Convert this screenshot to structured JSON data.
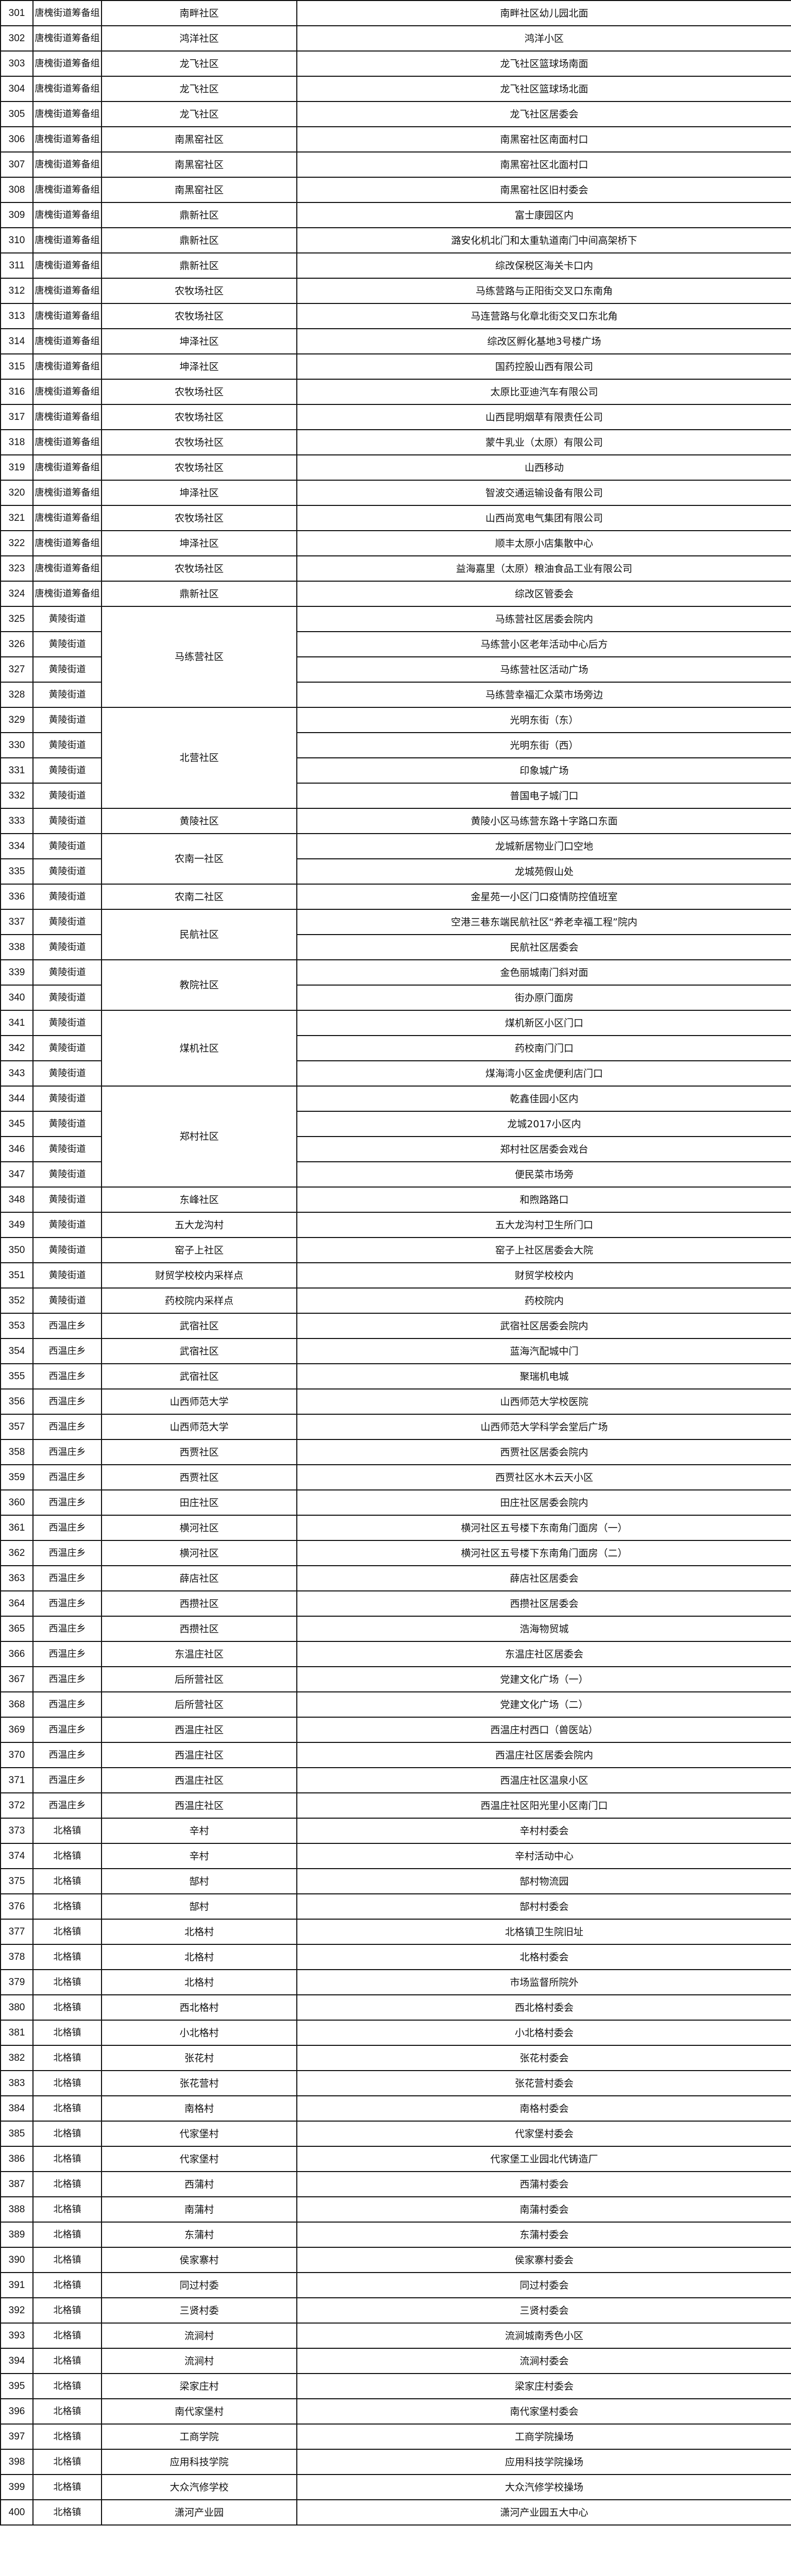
{
  "table": {
    "rows": [
      [
        "301",
        "唐槐街道筹备组",
        "南畔社区",
        "南畔社区幼儿园北面",
        1
      ],
      [
        "302",
        "唐槐街道筹备组",
        "鸿洋社区",
        "鸿洋小区",
        1
      ],
      [
        "303",
        "唐槐街道筹备组",
        "龙飞社区",
        "龙飞社区篮球场南面",
        1
      ],
      [
        "304",
        "唐槐街道筹备组",
        "龙飞社区",
        "龙飞社区篮球场北面",
        1
      ],
      [
        "305",
        "唐槐街道筹备组",
        "龙飞社区",
        "龙飞社区居委会",
        1
      ],
      [
        "306",
        "唐槐街道筹备组",
        "南黑窑社区",
        "南黑窑社区南面村口",
        1
      ],
      [
        "307",
        "唐槐街道筹备组",
        "南黑窑社区",
        "南黑窑社区北面村口",
        1
      ],
      [
        "308",
        "唐槐街道筹备组",
        "南黑窑社区",
        "南黑窑社区旧村委会",
        1
      ],
      [
        "309",
        "唐槐街道筹备组",
        "鼎新社区",
        "富士康园区内",
        1
      ],
      [
        "310",
        "唐槐街道筹备组",
        "鼎新社区",
        "潞安化机北门和太重轨道南门中间高架桥下",
        1
      ],
      [
        "311",
        "唐槐街道筹备组",
        "鼎新社区",
        "综改保税区海关卡口内",
        1
      ],
      [
        "312",
        "唐槐街道筹备组",
        "农牧场社区",
        "马练营路与正阳街交叉口东南角",
        1
      ],
      [
        "313",
        "唐槐街道筹备组",
        "农牧场社区",
        "马连营路与化章北街交叉口东北角",
        1
      ],
      [
        "314",
        "唐槐街道筹备组",
        "坤泽社区",
        "综改区孵化基地3号楼广场",
        1
      ],
      [
        "315",
        "唐槐街道筹备组",
        "坤泽社区",
        "国药控股山西有限公司",
        1
      ],
      [
        "316",
        "唐槐街道筹备组",
        "农牧场社区",
        "太原比亚迪汽车有限公司",
        1
      ],
      [
        "317",
        "唐槐街道筹备组",
        "农牧场社区",
        "山西昆明烟草有限责任公司",
        1
      ],
      [
        "318",
        "唐槐街道筹备组",
        "农牧场社区",
        "蒙牛乳业（太原）有限公司",
        1
      ],
      [
        "319",
        "唐槐街道筹备组",
        "农牧场社区",
        "山西移动",
        1
      ],
      [
        "320",
        "唐槐街道筹备组",
        "坤泽社区",
        "智波交通运输设备有限公司",
        1
      ],
      [
        "321",
        "唐槐街道筹备组",
        "农牧场社区",
        "山西尚宽电气集团有限公司",
        1
      ],
      [
        "322",
        "唐槐街道筹备组",
        "坤泽社区",
        "顺丰太原小店集散中心",
        1
      ],
      [
        "323",
        "唐槐街道筹备组",
        "农牧场社区",
        "益海嘉里（太原）粮油食品工业有限公司",
        1
      ],
      [
        "324",
        "唐槐街道筹备组",
        "鼎新社区",
        "综改区管委会",
        1
      ],
      [
        "325",
        "黄陵街道",
        "马练营社区",
        "马练营社区居委会院内",
        4
      ],
      [
        "326",
        "黄陵街道",
        null,
        "马练营小区老年活动中心后方",
        0
      ],
      [
        "327",
        "黄陵街道",
        null,
        "马练营社区活动广场",
        0
      ],
      [
        "328",
        "黄陵街道",
        null,
        "马练营幸福汇众菜市场旁边",
        0
      ],
      [
        "329",
        "黄陵街道",
        "北营社区",
        "光明东街（东）",
        4
      ],
      [
        "330",
        "黄陵街道",
        null,
        "光明东街（西）",
        0
      ],
      [
        "331",
        "黄陵街道",
        null,
        "印象城广场",
        0
      ],
      [
        "332",
        "黄陵街道",
        null,
        "普国电子城门口",
        0
      ],
      [
        "333",
        "黄陵街道",
        "黄陵社区",
        "黄陵小区马练营东路十字路口东面",
        1
      ],
      [
        "334",
        "黄陵街道",
        "农南一社区",
        "龙城新居物业门口空地",
        2
      ],
      [
        "335",
        "黄陵街道",
        null,
        "龙城苑假山处",
        0
      ],
      [
        "336",
        "黄陵街道",
        "农南二社区",
        "金星苑一小区门口疫情防控值班室",
        1
      ],
      [
        "337",
        "黄陵街道",
        "民航社区",
        "空港三巷东端民航社区“养老幸福工程”院内",
        2
      ],
      [
        "338",
        "黄陵街道",
        null,
        "民航社区居委会",
        0
      ],
      [
        "339",
        "黄陵街道",
        "教院社区",
        "金色丽城南门斜对面",
        2
      ],
      [
        "340",
        "黄陵街道",
        null,
        "街办原门面房",
        0
      ],
      [
        "341",
        "黄陵街道",
        "煤机社区",
        "煤机新区小区门口",
        3
      ],
      [
        "342",
        "黄陵街道",
        null,
        "药校南门门口",
        0
      ],
      [
        "343",
        "黄陵街道",
        null,
        "煤海湾小区金虎便利店门口",
        0
      ],
      [
        "344",
        "黄陵街道",
        "郑村社区",
        "乾鑫佳园小区内",
        4
      ],
      [
        "345",
        "黄陵街道",
        null,
        "龙城2017小区内",
        0
      ],
      [
        "346",
        "黄陵街道",
        null,
        "郑村社区居委会戏台",
        0
      ],
      [
        "347",
        "黄陵街道",
        null,
        "便民菜市场旁",
        0
      ],
      [
        "348",
        "黄陵街道",
        "东峰社区",
        "和煦路路口",
        1
      ],
      [
        "349",
        "黄陵街道",
        "五大龙沟村",
        "五大龙沟村卫生所门口",
        1
      ],
      [
        "350",
        "黄陵街道",
        "窑子上社区",
        "窑子上社区居委会大院",
        1
      ],
      [
        "351",
        "黄陵街道",
        "财贸学校校内采样点",
        "财贸学校校内",
        1
      ],
      [
        "352",
        "黄陵街道",
        "药校院内采样点",
        "药校院内",
        1
      ],
      [
        "353",
        "西温庄乡",
        "武宿社区",
        "武宿社区居委会院内",
        1
      ],
      [
        "354",
        "西温庄乡",
        "武宿社区",
        "蓝海汽配城中门",
        1
      ],
      [
        "355",
        "西温庄乡",
        "武宿社区",
        "聚瑞机电城",
        1
      ],
      [
        "356",
        "西温庄乡",
        "山西师范大学",
        "山西师范大学校医院",
        1
      ],
      [
        "357",
        "西温庄乡",
        "山西师范大学",
        "山西师范大学科学会堂后广场",
        1
      ],
      [
        "358",
        "西温庄乡",
        "西贾社区",
        "西贾社区居委会院内",
        1
      ],
      [
        "359",
        "西温庄乡",
        "西贾社区",
        "西贾社区水木云天小区",
        1
      ],
      [
        "360",
        "西温庄乡",
        "田庄社区",
        "田庄社区居委会院内",
        1
      ],
      [
        "361",
        "西温庄乡",
        "横河社区",
        "横河社区五号楼下东南角门面房（一）",
        1
      ],
      [
        "362",
        "西温庄乡",
        "横河社区",
        "横河社区五号楼下东南角门面房（二）",
        1
      ],
      [
        "363",
        "西温庄乡",
        "薛店社区",
        "薛店社区居委会",
        1
      ],
      [
        "364",
        "西温庄乡",
        "西攒社区",
        "西攒社区居委会",
        1
      ],
      [
        "365",
        "西温庄乡",
        "西攒社区",
        "浩海物贸城",
        1
      ],
      [
        "366",
        "西温庄乡",
        "东温庄社区",
        "东温庄社区居委会",
        1
      ],
      [
        "367",
        "西温庄乡",
        "后所营社区",
        "党建文化广场（一）",
        1
      ],
      [
        "368",
        "西温庄乡",
        "后所营社区",
        "党建文化广场（二）",
        1
      ],
      [
        "369",
        "西温庄乡",
        "西温庄社区",
        "西温庄村西口（兽医站）",
        1
      ],
      [
        "370",
        "西温庄乡",
        "西温庄社区",
        "西温庄社区居委会院内",
        1
      ],
      [
        "371",
        "西温庄乡",
        "西温庄社区",
        "西温庄社区温泉小区",
        1
      ],
      [
        "372",
        "西温庄乡",
        "西温庄社区",
        "西温庄社区阳光里小区南门口",
        1
      ],
      [
        "373",
        "北格镇",
        "辛村",
        "辛村村委会",
        1
      ],
      [
        "374",
        "北格镇",
        "辛村",
        "辛村活动中心",
        1
      ],
      [
        "375",
        "北格镇",
        "郜村",
        "郜村物流园",
        1
      ],
      [
        "376",
        "北格镇",
        "郜村",
        "郜村村委会",
        1
      ],
      [
        "377",
        "北格镇",
        "北格村",
        "北格镇卫生院旧址",
        1
      ],
      [
        "378",
        "北格镇",
        "北格村",
        "北格村委会",
        1
      ],
      [
        "379",
        "北格镇",
        "北格村",
        "市场监督所院外",
        1
      ],
      [
        "380",
        "北格镇",
        "西北格村",
        "西北格村委会",
        1
      ],
      [
        "381",
        "北格镇",
        "小北格村",
        "小北格村委会",
        1
      ],
      [
        "382",
        "北格镇",
        "张花村",
        "张花村委会",
        1
      ],
      [
        "383",
        "北格镇",
        "张花营村",
        "张花营村委会",
        1
      ],
      [
        "384",
        "北格镇",
        "南格村",
        "南格村委会",
        1
      ],
      [
        "385",
        "北格镇",
        "代家堡村",
        "代家堡村委会",
        1
      ],
      [
        "386",
        "北格镇",
        "代家堡村",
        "代家堡工业园北代铸造厂",
        1
      ],
      [
        "387",
        "北格镇",
        "西蒲村",
        "西蒲村委会",
        1
      ],
      [
        "388",
        "北格镇",
        "南蒲村",
        "南蒲村委会",
        1
      ],
      [
        "389",
        "北格镇",
        "东蒲村",
        "东蒲村委会",
        1
      ],
      [
        "390",
        "北格镇",
        "侯家寨村",
        "侯家寨村委会",
        1
      ],
      [
        "391",
        "北格镇",
        "同过村委",
        "同过村委会",
        1
      ],
      [
        "392",
        "北格镇",
        "三贤村委",
        "三贤村委会",
        1
      ],
      [
        "393",
        "北格镇",
        "流涧村",
        "流涧城南秀色小区",
        1
      ],
      [
        "394",
        "北格镇",
        "流涧村",
        "流涧村委会",
        1
      ],
      [
        "395",
        "北格镇",
        "梁家庄村",
        "梁家庄村委会",
        1
      ],
      [
        "396",
        "北格镇",
        "南代家堡村",
        "南代家堡村委会",
        1
      ],
      [
        "397",
        "北格镇",
        "工商学院",
        "工商学院操场",
        1
      ],
      [
        "398",
        "北格镇",
        "应用科技学院",
        "应用科技学院操场",
        1
      ],
      [
        "399",
        "北格镇",
        "大众汽修学校",
        "大众汽修学校操场",
        1
      ],
      [
        "400",
        "北格镇",
        "潇河产业园",
        "潇河产业园五大中心",
        1
      ]
    ]
  }
}
